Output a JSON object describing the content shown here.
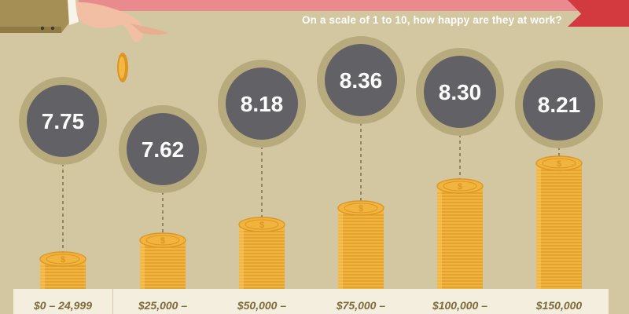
{
  "subtitle": "On a scale of 1 to 10, how happy are they at work?",
  "colors": {
    "background": "#d3c7a1",
    "banner_pink": "#e98b8c",
    "banner_red": "#d33a3f",
    "bubble_outer": "#b7ab7e",
    "bubble_inner": "#626166",
    "coin_gold": "#f1b43e",
    "coin_dark": "#dc9624",
    "label_box": "#f4eedf"
  },
  "chart_data": {
    "type": "bar",
    "title": "",
    "subtitle": "On a scale of 1 to 10, how happy are they at work?",
    "categories": [
      "$0 – 24,999",
      "$25,000 –",
      "$50,000 –",
      "$75,000 –",
      "$100,000 –",
      "$150,000"
    ],
    "values": [
      7.75,
      7.62,
      8.18,
      8.36,
      8.3,
      8.21
    ],
    "value_labels": [
      "7.75",
      "7.62",
      "8.18",
      "8.36",
      "8.30",
      "8.21"
    ],
    "marks": "coin stacks with value bubbles"
  }
}
